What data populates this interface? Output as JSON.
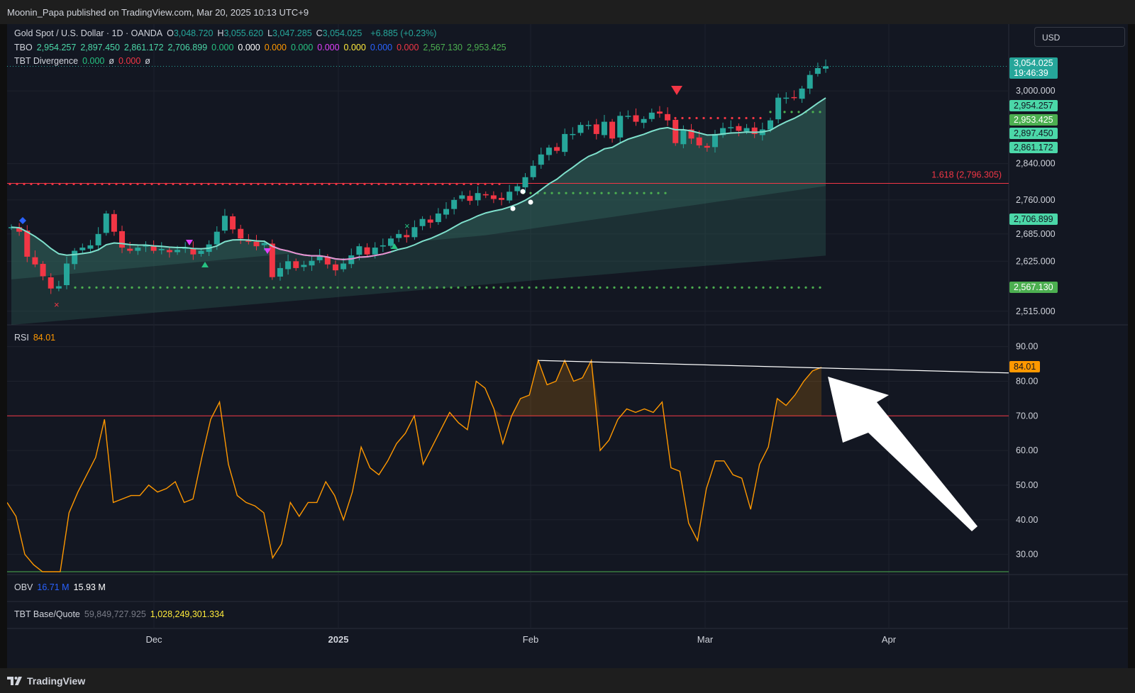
{
  "header": {
    "publisher": "Moonin_Papa published on TradingView.com, Mar 20, 2025 10:13 UTC+9"
  },
  "footer": {
    "brand": "TradingView"
  },
  "currency": "USD",
  "legend": {
    "symbol": "Gold Spot / U.S. Dollar · 1D · OANDA",
    "ohlc": [
      {
        "k": "O",
        "v": "3,048.720"
      },
      {
        "k": "H",
        "v": "3,055.620"
      },
      {
        "k": "L",
        "v": "3,047.285"
      },
      {
        "k": "C",
        "v": "3,054.025"
      }
    ],
    "change": "+6.885 (+0.23%)",
    "tbo_label": "TBO",
    "tbo_values": [
      {
        "v": "2,954.257",
        "c": "#4bd7a8"
      },
      {
        "v": "2,897.450",
        "c": "#4bd7a8"
      },
      {
        "v": "2,861.172",
        "c": "#4bd7a8"
      },
      {
        "v": "2,706.899",
        "c": "#4bd7a8"
      },
      {
        "v": "0.000",
        "c": "#26c281"
      },
      {
        "v": "0.000",
        "c": "#ffffff"
      },
      {
        "v": "0.000",
        "c": "#ff9800"
      },
      {
        "v": "0.000",
        "c": "#26c281"
      },
      {
        "v": "0.000",
        "c": "#e040fb"
      },
      {
        "v": "0.000",
        "c": "#ffeb3b"
      },
      {
        "v": "0.000",
        "c": "#2962ff"
      },
      {
        "v": "0.000",
        "c": "#f23645"
      },
      {
        "v": "2,567.130",
        "c": "#4caf50"
      },
      {
        "v": "2,953.425",
        "c": "#4caf50"
      }
    ],
    "div_label": "TBT Divergence",
    "div_values": [
      {
        "v": "0.000",
        "c": "#26c281"
      },
      {
        "v": "ø",
        "c": "#d1d4dc"
      },
      {
        "v": "0.000",
        "c": "#f23645"
      },
      {
        "v": "ø",
        "c": "#d1d4dc"
      }
    ]
  },
  "rsi_legend": {
    "label": "RSI",
    "value": "84.01"
  },
  "obv_legend": {
    "label": "OBV",
    "v1": "16.71 M",
    "v2": "15.93 M"
  },
  "tbt_legend": {
    "label": "TBT Base/Quote",
    "v1": "59,849,727.925",
    "v2": "1,028,249,301.334"
  },
  "price_tags": [
    {
      "v": "3,054.025",
      "sub": "19:46:39",
      "price": 3054.025,
      "bg": "#26a69a",
      "fg": "#ffffff"
    },
    {
      "v": "2,954.257",
      "price": 2954.257,
      "bg": "#4bd7a8",
      "fg": "#131722"
    },
    {
      "v": "2,953.425",
      "price": 2953.425,
      "bg": "#4caf50",
      "fg": "#ffffff"
    },
    {
      "v": "2,897.450",
      "price": 2897.45,
      "bg": "#4bd7a8",
      "fg": "#131722"
    },
    {
      "v": "2,861.172",
      "price": 2861.172,
      "bg": "#4bd7a8",
      "fg": "#131722"
    },
    {
      "v": "2,706.899",
      "price": 2706.899,
      "bg": "#4bd7a8",
      "fg": "#131722"
    },
    {
      "v": "2,567.130",
      "price": 2567.13,
      "bg": "#4caf50",
      "fg": "#ffffff"
    }
  ],
  "fib_label": "1.618 (2,796.305)",
  "rsi_tag": {
    "v": "84.01",
    "value": 84.01,
    "bg": "#ff9800",
    "fg": "#131722"
  },
  "chart_data": [
    {
      "type": "candlestick",
      "title": "Gold Spot / U.S. Dollar · 1D · OANDA",
      "x_ticks": [
        "Dec",
        "2025",
        "Feb",
        "Mar",
        "Apr"
      ],
      "y_ticks": [
        "3,000.000",
        "2,840.000",
        "2,760.000",
        "2,685.000",
        "2,625.000",
        "2,515.000"
      ],
      "y_tick_values": [
        3000,
        2840,
        2760,
        2685,
        2625,
        2515
      ],
      "ylim": [
        2485,
        3100
      ],
      "levels": {
        "fib_1_618": 2796.305,
        "support_dots": 2567.13,
        "resist_dots": 2953.425,
        "mid_dots": 2775
      },
      "close": [
        2700,
        2690,
        2635,
        2618,
        2592,
        2565,
        2570,
        2620,
        2648,
        2655,
        2660,
        2685,
        2730,
        2690,
        2655,
        2648,
        2655,
        2660,
        2648,
        2652,
        2645,
        2650,
        2655,
        2640,
        2648,
        2662,
        2690,
        2725,
        2695,
        2675,
        2668,
        2658,
        2665,
        2590,
        2610,
        2625,
        2610,
        2617,
        2626,
        2637,
        2618,
        2605,
        2620,
        2638,
        2658,
        2640,
        2655,
        2660,
        2675,
        2685,
        2678,
        2700,
        2718,
        2710,
        2730,
        2740,
        2760,
        2770,
        2758,
        2775,
        2770,
        2762,
        2760,
        2778,
        2790,
        2810,
        2835,
        2860,
        2875,
        2868,
        2905,
        2905,
        2925,
        2925,
        2905,
        2932,
        2895,
        2945,
        2945,
        2932,
        2938,
        2952,
        2950,
        2935,
        2885,
        2915,
        2895,
        2880,
        2875,
        2905,
        2918,
        2920,
        2912,
        2918,
        2905,
        2915,
        2935,
        2985,
        2985,
        2985,
        3005,
        3035,
        3050,
        3054
      ]
    },
    {
      "type": "line",
      "title": "RSI",
      "y_ticks": [
        "90.00",
        "80.00",
        "70.00",
        "60.00",
        "50.00",
        "40.00",
        "30.00"
      ],
      "y_tick_values": [
        90,
        80,
        70,
        60,
        50,
        40,
        30
      ],
      "ylim": [
        25,
        93
      ],
      "levels": [
        70,
        25
      ],
      "values": [
        45,
        41,
        30,
        27,
        25,
        25,
        25,
        42,
        48,
        53,
        58,
        69,
        45,
        46,
        47,
        47,
        50,
        48,
        49,
        51,
        45,
        46,
        58,
        69,
        74,
        56,
        47,
        45,
        44,
        42,
        29,
        33,
        45,
        41,
        45,
        45,
        51,
        47,
        40,
        48,
        61,
        55,
        53,
        57,
        62,
        65,
        70,
        56,
        61,
        66,
        71,
        68,
        66,
        80,
        78,
        72,
        62,
        70,
        75,
        76,
        86,
        79,
        80,
        86,
        80,
        81,
        86,
        60,
        63,
        69,
        72,
        71,
        72,
        71,
        74,
        55,
        54,
        39,
        34,
        49,
        57,
        57,
        53,
        52,
        43,
        56,
        61,
        75,
        73,
        76,
        80,
        83,
        84.01
      ],
      "trendline_from_to": [
        [
          86,
          84.01
        ],
        [
          86,
          82.5
        ]
      ]
    }
  ]
}
